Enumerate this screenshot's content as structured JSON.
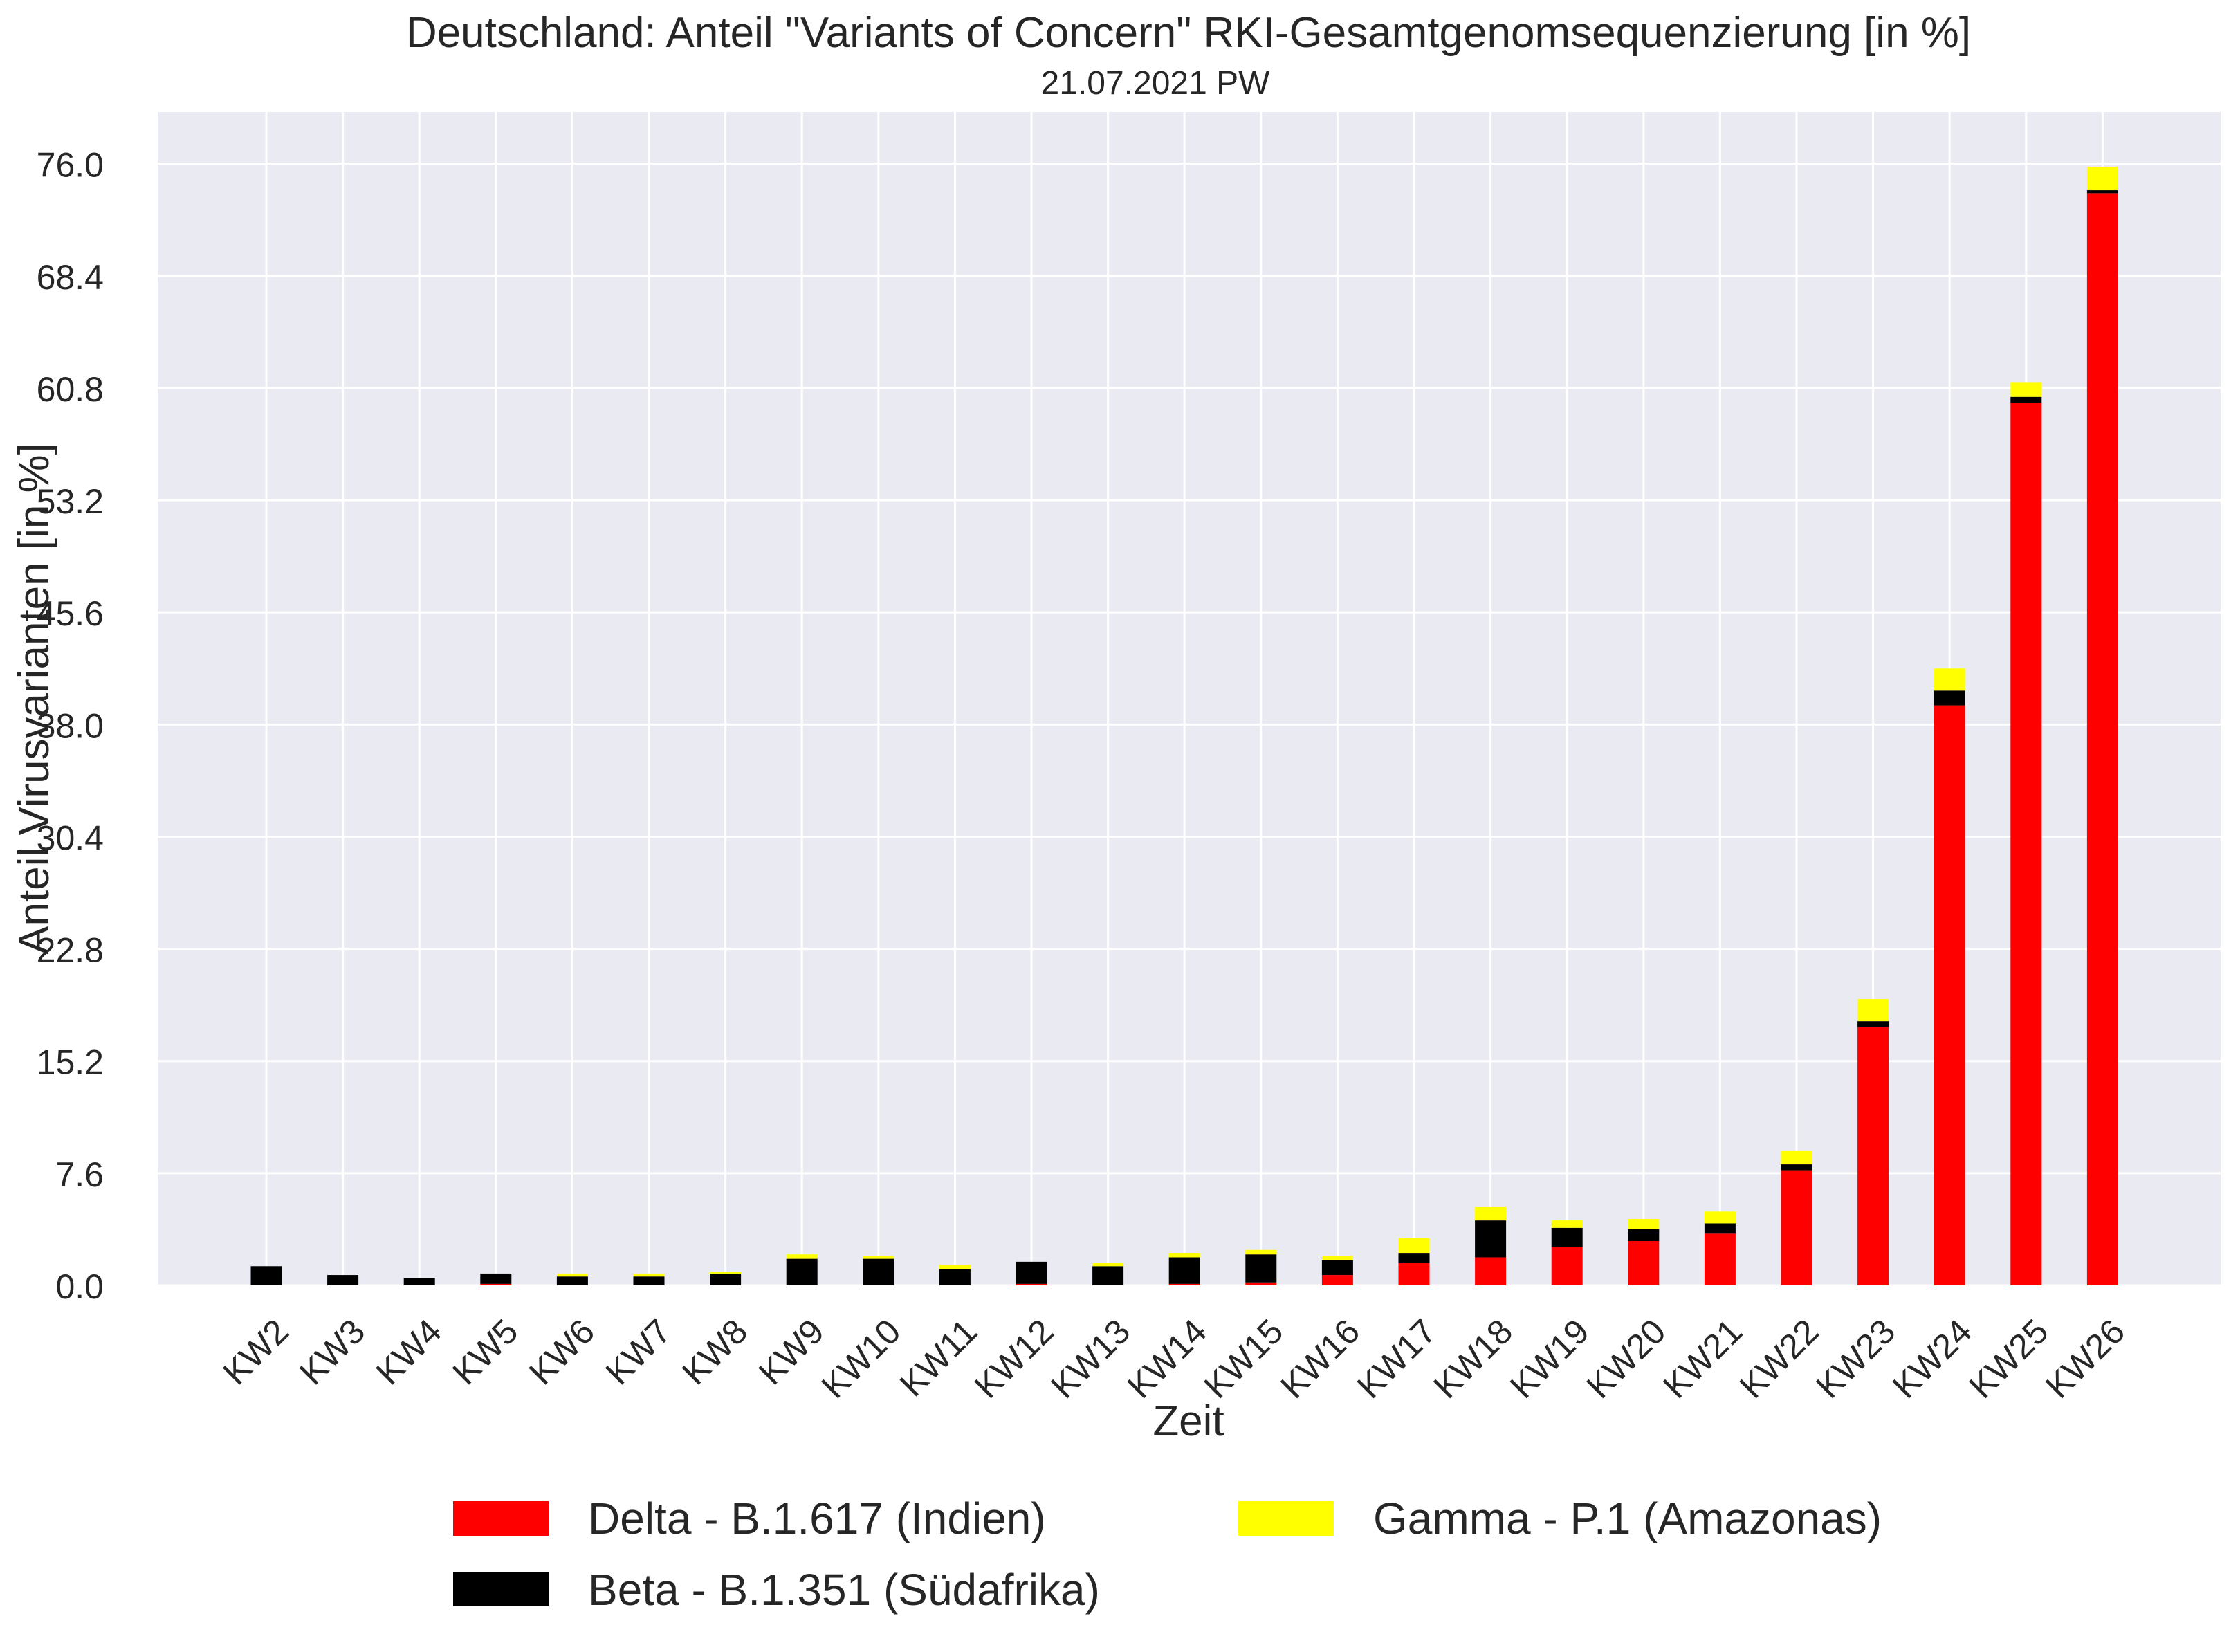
{
  "chart_data": {
    "type": "bar",
    "stacked": true,
    "title": "Deutschland: Anteil \"Variants of Concern\" RKI-Gesamtgenomsequenzierung [in %]",
    "subtitle": "21.07.2021 PW",
    "xlabel": "Zeit",
    "ylabel": "Anteil Virusvarianten [in %]",
    "ylim": [
      0,
      79.5
    ],
    "yticks": [
      "0.0",
      "7.6",
      "15.2",
      "22.8",
      "30.4",
      "38.0",
      "45.6",
      "53.2",
      "60.8",
      "68.4",
      "76.0"
    ],
    "grid": true,
    "legend_position": "bottom-center",
    "categories": [
      "KW2",
      "KW3",
      "KW4",
      "KW5",
      "KW6",
      "KW7",
      "KW8",
      "KW9",
      "KW10",
      "KW11",
      "KW12",
      "KW13",
      "KW14",
      "KW15",
      "KW16",
      "KW17",
      "KW18",
      "KW19",
      "KW20",
      "KW21",
      "KW22",
      "KW23",
      "KW24",
      "KW25",
      "KW26"
    ],
    "series": [
      {
        "name": "Delta - B.1.617 (Indien)",
        "color": "#ff0000",
        "values": [
          0,
          0,
          0,
          0.1,
          0,
          0,
          0,
          0,
          0,
          0,
          0.1,
          0,
          0.1,
          0.2,
          0.7,
          1.5,
          1.9,
          2.6,
          3.0,
          3.5,
          7.8,
          17.5,
          39.3,
          59.8,
          74.0
        ]
      },
      {
        "name": "Beta - B.1.351 (Südafrika)",
        "color": "#000000",
        "values": [
          1.3,
          0.7,
          0.5,
          0.7,
          0.6,
          0.6,
          0.8,
          1.8,
          1.8,
          1.1,
          1.5,
          1.3,
          1.8,
          1.9,
          1.0,
          0.7,
          2.5,
          1.3,
          0.8,
          0.7,
          0.4,
          0.4,
          1.0,
          0.4,
          0.2
        ]
      },
      {
        "name": "Gamma - P.1 (Amazonas)",
        "color": "#ffff00",
        "values": [
          0,
          0,
          0,
          0,
          0.2,
          0.2,
          0.1,
          0.3,
          0.2,
          0.3,
          0,
          0.2,
          0.3,
          0.3,
          0.3,
          1.0,
          0.9,
          0.5,
          0.7,
          0.8,
          0.9,
          1.5,
          1.5,
          1.0,
          1.6
        ]
      }
    ]
  }
}
